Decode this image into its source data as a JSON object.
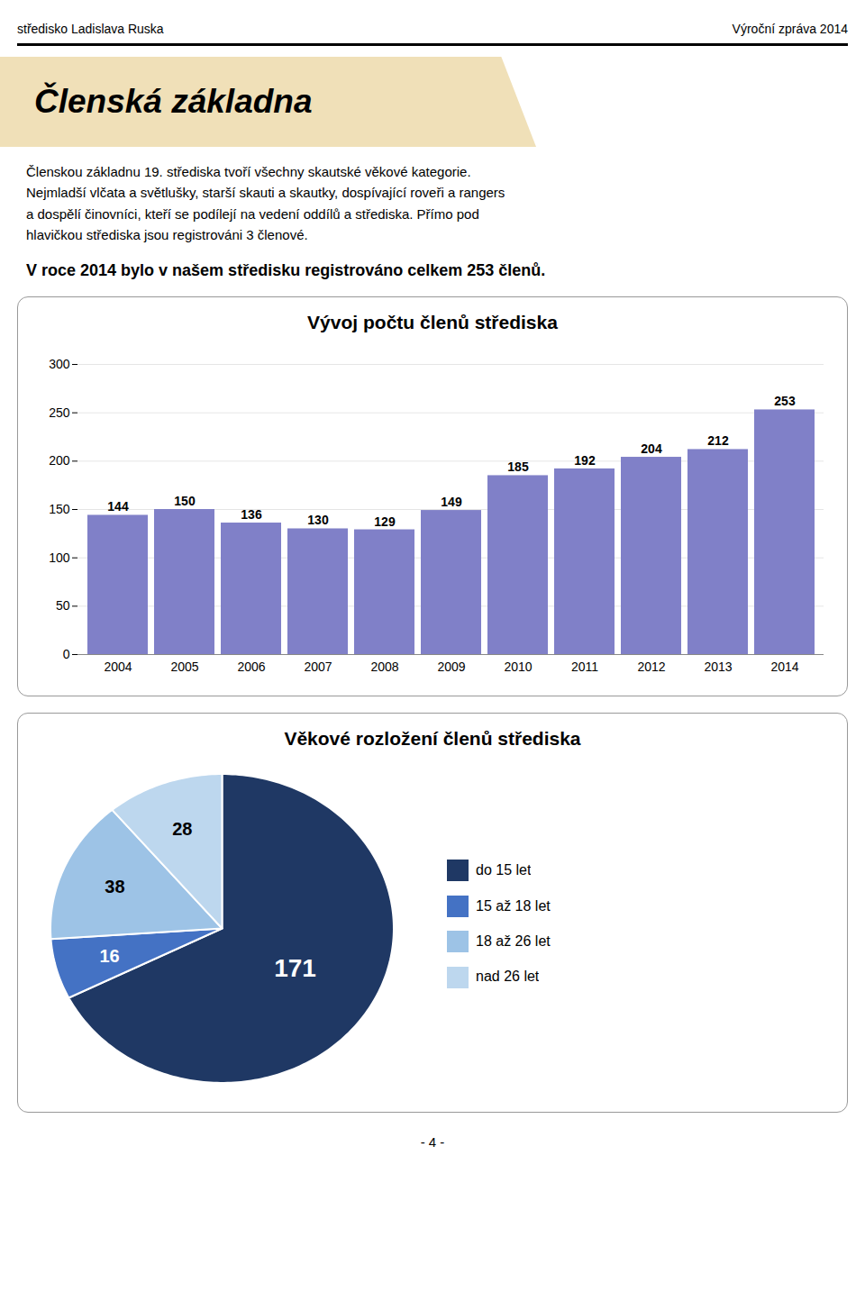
{
  "annotations": [
    "středisko Ladislava Ruska",
    "Výroční zpráva 2014",
    "Členská základna",
    "Členskou základnu 19. střediska tvoří všechny skautské věkové kategorie.",
    "Nejmladší vlčata a světlušky, starší skauti a skautky, dospívající roveři a rangers",
    "a dospělí činovníci, kteří se podílejí na vedení oddílů a střediska. Přímo pod",
    "hlavičkou střediska jsou registrováni 3 členové.",
    "V roce 2014 bylo v našem středisku registrováno celkem 253 členů.",
    "- 4 -"
  ],
  "chart_data": [
    {
      "type": "bar",
      "title": "Vývoj počtu členů střediska",
      "categories": [
        "2004",
        "2005",
        "2006",
        "2007",
        "2008",
        "2009",
        "2010",
        "2011",
        "2012",
        "2013",
        "2014"
      ],
      "values": [
        144,
        150,
        136,
        130,
        129,
        149,
        185,
        192,
        204,
        212,
        253
      ],
      "color": "#8080c8",
      "ylim": [
        0,
        300
      ],
      "yticks": [
        0,
        50,
        100,
        150,
        200,
        250,
        300
      ],
      "grid": true,
      "data_labels": true
    },
    {
      "type": "pie",
      "title": "Věkové rozložení členů střediska",
      "categories": [
        "do 15 let",
        "15 až 18 let",
        "18 až 26 let",
        "nad 26 let"
      ],
      "values": [
        171,
        16,
        38,
        28
      ],
      "colors": [
        "#1f3864",
        "#4472c4",
        "#9dc3e6",
        "#bdd7ee"
      ],
      "data_labels": true,
      "legend": "right"
    }
  ]
}
